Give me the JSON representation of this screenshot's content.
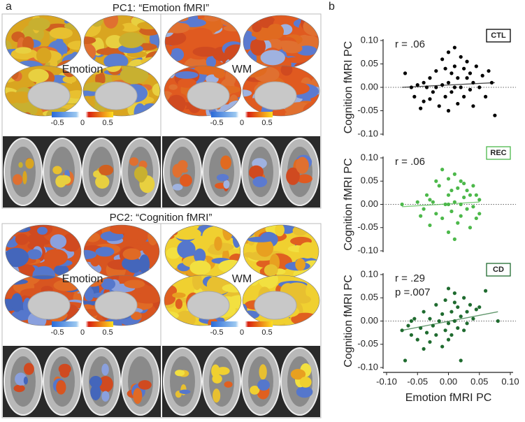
{
  "panel_a": {
    "label": "a",
    "sections": [
      {
        "title": "PC1: “Emotion fMRI”",
        "maps": [
          "Emotion",
          "WM"
        ]
      },
      {
        "title": "PC2: “Cognition fMRI”",
        "maps": [
          "Emotion",
          "WM"
        ]
      }
    ],
    "colorbar": {
      "lim": [
        -0.5,
        0.5
      ],
      "ticks": [
        -0.5,
        0,
        0.5
      ]
    }
  },
  "panel_b": {
    "label": "b"
  },
  "chart_data": [
    {
      "type": "scatter",
      "ylabel": "Cognition fMRI PC",
      "annotations": [
        "r = .06"
      ],
      "xlim": [
        -0.1,
        0.1
      ],
      "ylim": [
        -0.1,
        0.1
      ],
      "yticks": [
        {
          "value": -0.1,
          "label": "-0.10"
        },
        -0.05,
        {
          "value": 0,
          "label": "0.00"
        },
        0.05,
        {
          "value": 0.1,
          "label": "0.10"
        }
      ],
      "series": [
        {
          "name": "CTL",
          "color": "#000000",
          "x": [
            -0.07,
            -0.06,
            -0.055,
            -0.05,
            -0.045,
            -0.04,
            -0.04,
            -0.035,
            -0.03,
            -0.03,
            -0.025,
            -0.02,
            -0.02,
            -0.015,
            -0.01,
            -0.01,
            -0.005,
            0.0,
            0.0,
            0.0,
            0.005,
            0.005,
            0.01,
            0.01,
            0.01,
            0.015,
            0.015,
            0.02,
            0.02,
            0.025,
            0.025,
            0.03,
            0.03,
            0.035,
            0.035,
            0.04,
            0.04,
            0.045,
            0.05,
            0.055,
            0.06,
            0.065,
            0.07,
            0.075,
            -0.005
          ],
          "values": [
            0.03,
            0.0,
            -0.02,
            0.005,
            -0.045,
            -0.03,
            0.01,
            0.0,
            -0.025,
            0.02,
            -0.01,
            0.0,
            0.035,
            -0.04,
            0.005,
            0.06,
            -0.02,
            0.01,
            0.075,
            -0.05,
            0.03,
            -0.01,
            0.085,
            0.045,
            0.0,
            0.02,
            -0.035,
            0.065,
            0.0,
            0.04,
            -0.02,
            0.02,
            0.055,
            -0.005,
            0.03,
            0.01,
            -0.04,
            0.045,
            0.0,
            0.025,
            -0.02,
            0.035,
            0.01,
            -0.06,
            0.04
          ],
          "fit": {
            "x": [
              -0.075,
              0.075
            ],
            "values": [
              0.0,
              0.01
            ]
          }
        }
      ]
    },
    {
      "type": "scatter",
      "ylabel": "Cognition fMRI PC",
      "annotations": [
        "r = .06"
      ],
      "xlim": [
        -0.1,
        0.1
      ],
      "ylim": [
        -0.1,
        0.1
      ],
      "yticks": [
        {
          "value": -0.1,
          "label": "-0.10"
        },
        -0.05,
        {
          "value": 0,
          "label": "0.00"
        },
        0.05,
        {
          "value": 0.1,
          "label": "0.10"
        }
      ],
      "series": [
        {
          "name": "REC",
          "color": "#4cb84a",
          "x": [
            -0.075,
            -0.05,
            -0.04,
            -0.035,
            -0.03,
            -0.025,
            -0.02,
            -0.015,
            -0.01,
            -0.01,
            -0.005,
            0.0,
            0.0,
            0.0,
            0.005,
            0.01,
            0.01,
            0.015,
            0.015,
            0.02,
            0.02,
            0.025,
            0.025,
            0.03,
            0.03,
            0.035,
            0.035,
            0.04,
            0.04,
            0.045,
            0.045,
            0.05,
            -0.045,
            -0.02,
            0.01,
            0.005,
            -0.03,
            0.02,
            0.05,
            0.0
          ],
          "values": [
            0.0,
            0.005,
            -0.01,
            0.02,
            -0.045,
            0.005,
            -0.02,
            0.04,
            0.075,
            -0.03,
            0.0,
            0.055,
            -0.06,
            0.02,
            -0.015,
            0.065,
            0.005,
            -0.04,
            0.035,
            0.0,
            -0.025,
            0.045,
            0.015,
            -0.01,
            0.03,
            -0.05,
            0.02,
            0.04,
            -0.005,
            0.02,
            -0.03,
            0.01,
            -0.025,
            0.05,
            -0.075,
            0.03,
            0.01,
            0.05,
            -0.02,
            0.0
          ],
          "fit": {
            "x": [
              -0.075,
              0.05
            ],
            "values": [
              -0.005,
              0.005
            ]
          }
        }
      ]
    },
    {
      "type": "scatter",
      "ylabel": "Cognition fMRI PC",
      "xlabel": "Emotion fMRI PC",
      "annotations": [
        "r = .29",
        "p =.007"
      ],
      "xlim": [
        -0.1,
        0.1
      ],
      "ylim": [
        -0.1,
        0.1
      ],
      "xticks": [
        {
          "value": -0.1,
          "label": "-0.10"
        },
        -0.05,
        {
          "value": 0,
          "label": "0.00"
        },
        0.05,
        {
          "value": 0.1,
          "label": "0.10"
        }
      ],
      "yticks": [
        {
          "value": -0.1,
          "label": "-0.10"
        },
        -0.05,
        {
          "value": 0,
          "label": "0.00"
        },
        0.05,
        {
          "value": 0.1,
          "label": "0.10"
        }
      ],
      "series": [
        {
          "name": "CD",
          "color": "#1f6b2f",
          "x": [
            -0.075,
            -0.07,
            -0.065,
            -0.06,
            -0.055,
            -0.05,
            -0.045,
            -0.04,
            -0.04,
            -0.035,
            -0.03,
            -0.03,
            -0.025,
            -0.02,
            -0.02,
            -0.015,
            -0.01,
            -0.01,
            -0.005,
            -0.005,
            0.0,
            0.0,
            0.0,
            0.005,
            0.005,
            0.01,
            0.01,
            0.015,
            0.015,
            0.02,
            0.02,
            0.025,
            0.025,
            0.03,
            0.03,
            0.035,
            0.04,
            0.045,
            0.05,
            0.06,
            0.08,
            -0.06,
            0.01
          ],
          "values": [
            -0.02,
            -0.085,
            -0.01,
            -0.03,
            0.005,
            -0.04,
            -0.015,
            0.02,
            -0.06,
            -0.025,
            0.005,
            -0.045,
            -0.01,
            0.035,
            -0.03,
            0.0,
            -0.055,
            0.015,
            0.045,
            -0.02,
            0.07,
            -0.005,
            -0.04,
            0.02,
            -0.03,
            0.04,
            0.0,
            -0.015,
            0.03,
            -0.085,
            0.01,
            0.05,
            -0.02,
            0.02,
            -0.005,
            0.035,
            0.005,
            0.025,
            0.03,
            0.065,
            0.0,
            0.0,
            0.06
          ],
          "fit": {
            "x": [
              -0.075,
              0.08
            ],
            "values": [
              -0.02,
              0.02
            ]
          }
        }
      ]
    }
  ]
}
